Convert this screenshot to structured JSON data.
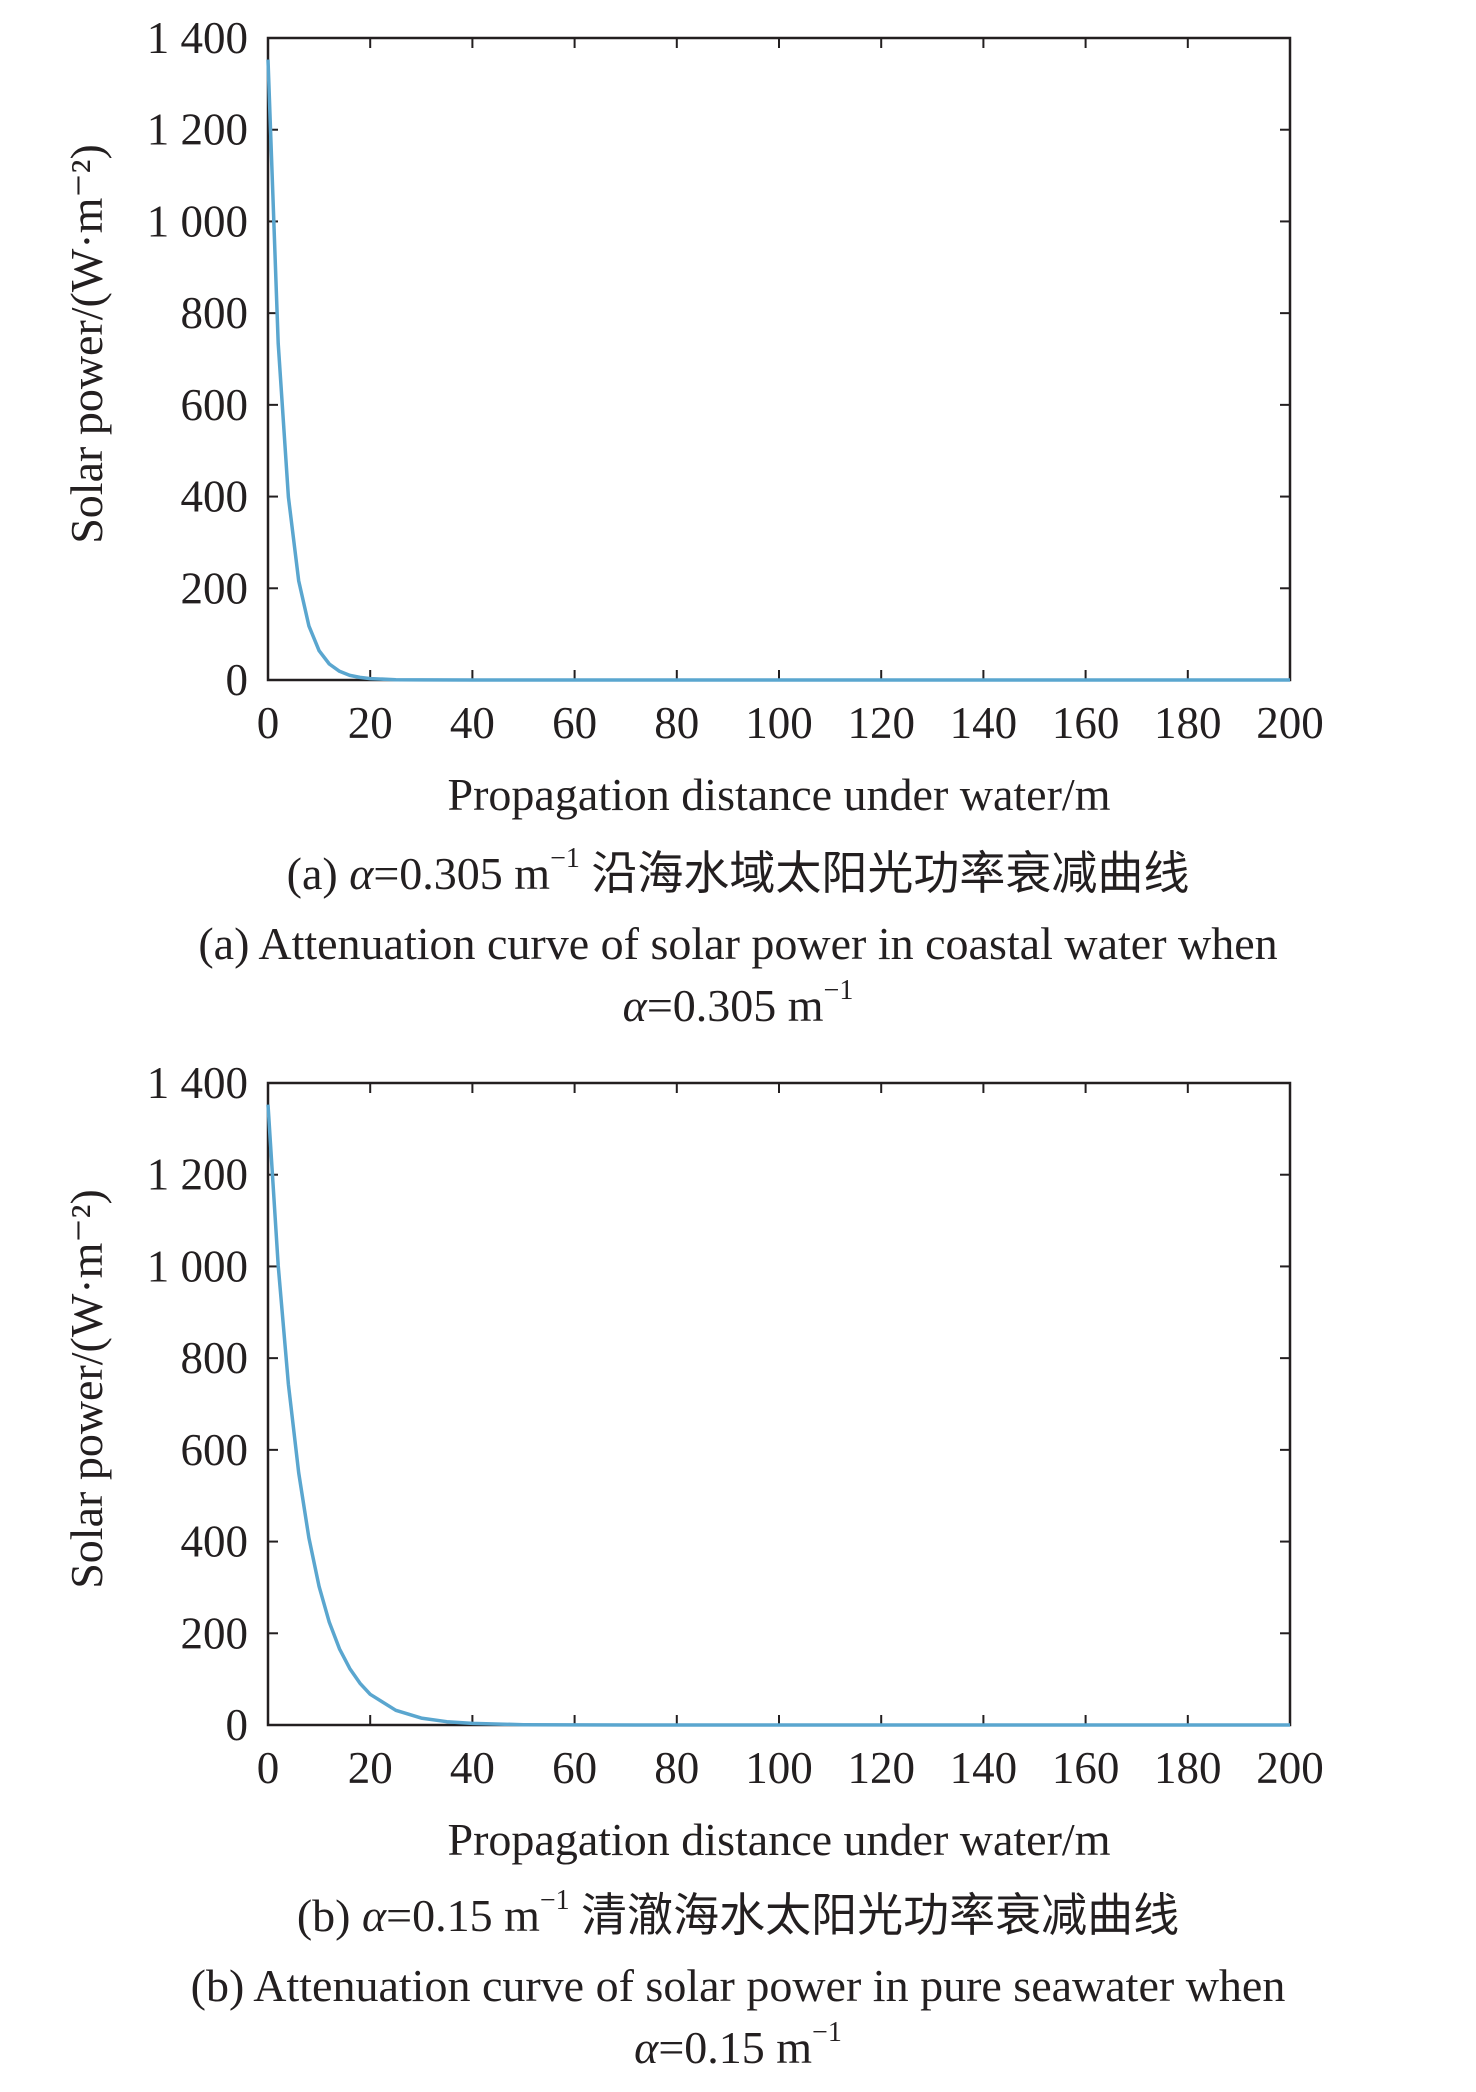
{
  "chart_data": [
    {
      "type": "line",
      "id": "a",
      "xlabel": "Propagation distance under water/m",
      "ylabel": "Solar power/(W·m⁻²)",
      "xlim": [
        0,
        200
      ],
      "ylim": [
        0,
        1400
      ],
      "x_ticks": [
        0,
        20,
        40,
        60,
        80,
        100,
        120,
        140,
        160,
        180,
        200
      ],
      "y_ticks": [
        0,
        200,
        400,
        600,
        800,
        1000,
        1200,
        1400
      ],
      "y_tick_labels": [
        "0",
        "200",
        "400",
        "600",
        "800",
        "1 000",
        "1 200",
        "1 400"
      ],
      "grid": false,
      "series": [
        {
          "color": "#5aa6cf",
          "x": [
            0,
            2,
            4,
            6,
            8,
            10,
            12,
            14,
            16,
            18,
            20,
            25,
            30,
            40,
            60,
            80,
            100,
            120,
            140,
            160,
            180,
            200
          ],
          "y": [
            1353,
            734,
            399,
            216,
            118,
            64,
            35,
            19,
            10,
            5.6,
            3.0,
            0.65,
            0.14,
            0.0,
            0,
            0,
            0,
            0,
            0,
            0,
            0,
            0
          ]
        }
      ],
      "caption_zh": {
        "prefix": "(a) ",
        "alpha": "α",
        "value": "=0.305 m",
        "sup": "−1",
        "text": " 沿海水域太阳光功率衰减曲线"
      },
      "caption_en": {
        "line1": "(a) Attenuation curve of solar power in coastal water when",
        "alpha": "α",
        "value": "=0.305 m",
        "sup": "−1"
      }
    },
    {
      "type": "line",
      "id": "b",
      "xlabel": "Propagation distance under water/m",
      "ylabel": "Solar power/(W·m⁻²)",
      "xlim": [
        0,
        200
      ],
      "ylim": [
        0,
        1400
      ],
      "x_ticks": [
        0,
        20,
        40,
        60,
        80,
        100,
        120,
        140,
        160,
        180,
        200
      ],
      "y_ticks": [
        0,
        200,
        400,
        600,
        800,
        1000,
        1200,
        1400
      ],
      "y_tick_labels": [
        "0",
        "200",
        "400",
        "600",
        "800",
        "1 000",
        "1 200",
        "1 400"
      ],
      "grid": false,
      "series": [
        {
          "color": "#5aa6cf",
          "x": [
            0,
            2,
            4,
            6,
            8,
            10,
            12,
            14,
            16,
            18,
            20,
            25,
            30,
            35,
            40,
            50,
            60,
            80,
            100,
            120,
            140,
            160,
            180,
            200
          ],
          "y": [
            1353,
            1002,
            743,
            550,
            408,
            302,
            224,
            166,
            123,
            91,
            67,
            32,
            15,
            7.1,
            3.4,
            0.75,
            0.17,
            0,
            0,
            0,
            0,
            0,
            0,
            0
          ]
        }
      ],
      "caption_zh": {
        "prefix": "(b) ",
        "alpha": "α",
        "value": "=0.15 m",
        "sup": "−1",
        "text": " 清澈海水太阳光功率衰减曲线"
      },
      "caption_en": {
        "line1": "(b) Attenuation curve of solar power in pure seawater when",
        "alpha": "α",
        "value": "=0.15 m",
        "sup": "−1"
      }
    }
  ]
}
